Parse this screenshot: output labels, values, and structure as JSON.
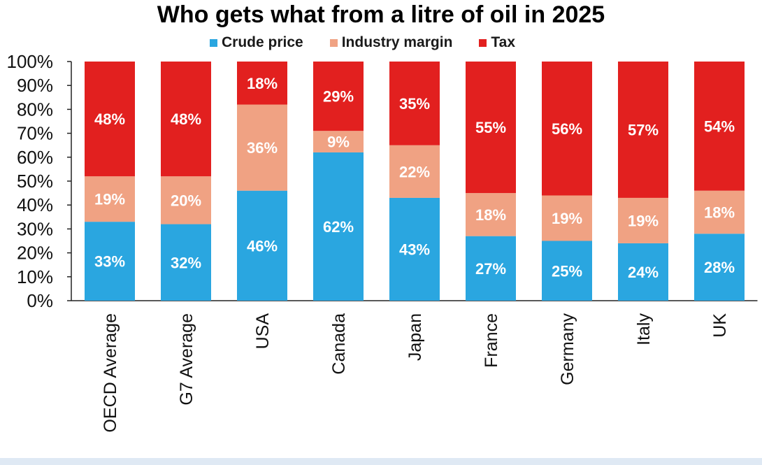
{
  "chart_data": {
    "type": "bar",
    "stacked": true,
    "title": "Who gets what from a litre of oil in 2025",
    "categories": [
      "OECD Average",
      "G7 Average",
      "USA",
      "Canada",
      "Japan",
      "France",
      "Germany",
      "Italy",
      "UK"
    ],
    "series": [
      {
        "name": "Crude price",
        "color": "#2aa6e0",
        "values": [
          33,
          32,
          46,
          62,
          43,
          27,
          25,
          24,
          28
        ]
      },
      {
        "name": "Industry margin",
        "color": "#f0a283",
        "values": [
          19,
          20,
          36,
          9,
          22,
          18,
          19,
          19,
          18
        ]
      },
      {
        "name": "Tax",
        "color": "#e2201f",
        "values": [
          48,
          48,
          18,
          29,
          35,
          55,
          56,
          57,
          54
        ]
      }
    ],
    "ylim": [
      0,
      100
    ],
    "yticks": [
      "0%",
      "10%",
      "20%",
      "30%",
      "40%",
      "50%",
      "60%",
      "70%",
      "80%",
      "90%",
      "100%"
    ],
    "value_suffix": "%",
    "legend_position": "top",
    "grid": false
  }
}
